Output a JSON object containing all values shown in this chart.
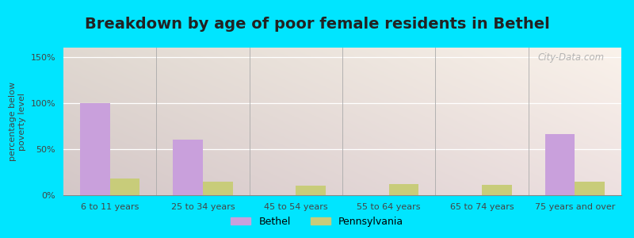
{
  "title": "Breakdown by age of poor female residents in Bethel",
  "ylabel": "percentage below\npoverty level",
  "categories": [
    "6 to 11 years",
    "25 to 34 years",
    "45 to 54 years",
    "55 to 64 years",
    "65 to 74 years",
    "75 years and over"
  ],
  "bethel_values": [
    100,
    60,
    0,
    0,
    0,
    66
  ],
  "pennsylvania_values": [
    18,
    15,
    10,
    12,
    11,
    15
  ],
  "bethel_color": "#c9a0dc",
  "pennsylvania_color": "#c8cc7a",
  "ylim": [
    0,
    160
  ],
  "yticks": [
    0,
    50,
    100,
    150
  ],
  "ytick_labels": [
    "0%",
    "50%",
    "100%",
    "150%"
  ],
  "bar_width": 0.32,
  "outer_background": "#00e5ff",
  "plot_bg_topleft": "#d8ede0",
  "plot_bg_topright": "#f0f8f0",
  "plot_bg_bottomleft": "#c8ddb8",
  "plot_bg_bottomright": "#e8f4d8",
  "title_fontsize": 14,
  "axis_label_fontsize": 8,
  "tick_fontsize": 8,
  "legend_fontsize": 9,
  "watermark": "City-Data.com"
}
